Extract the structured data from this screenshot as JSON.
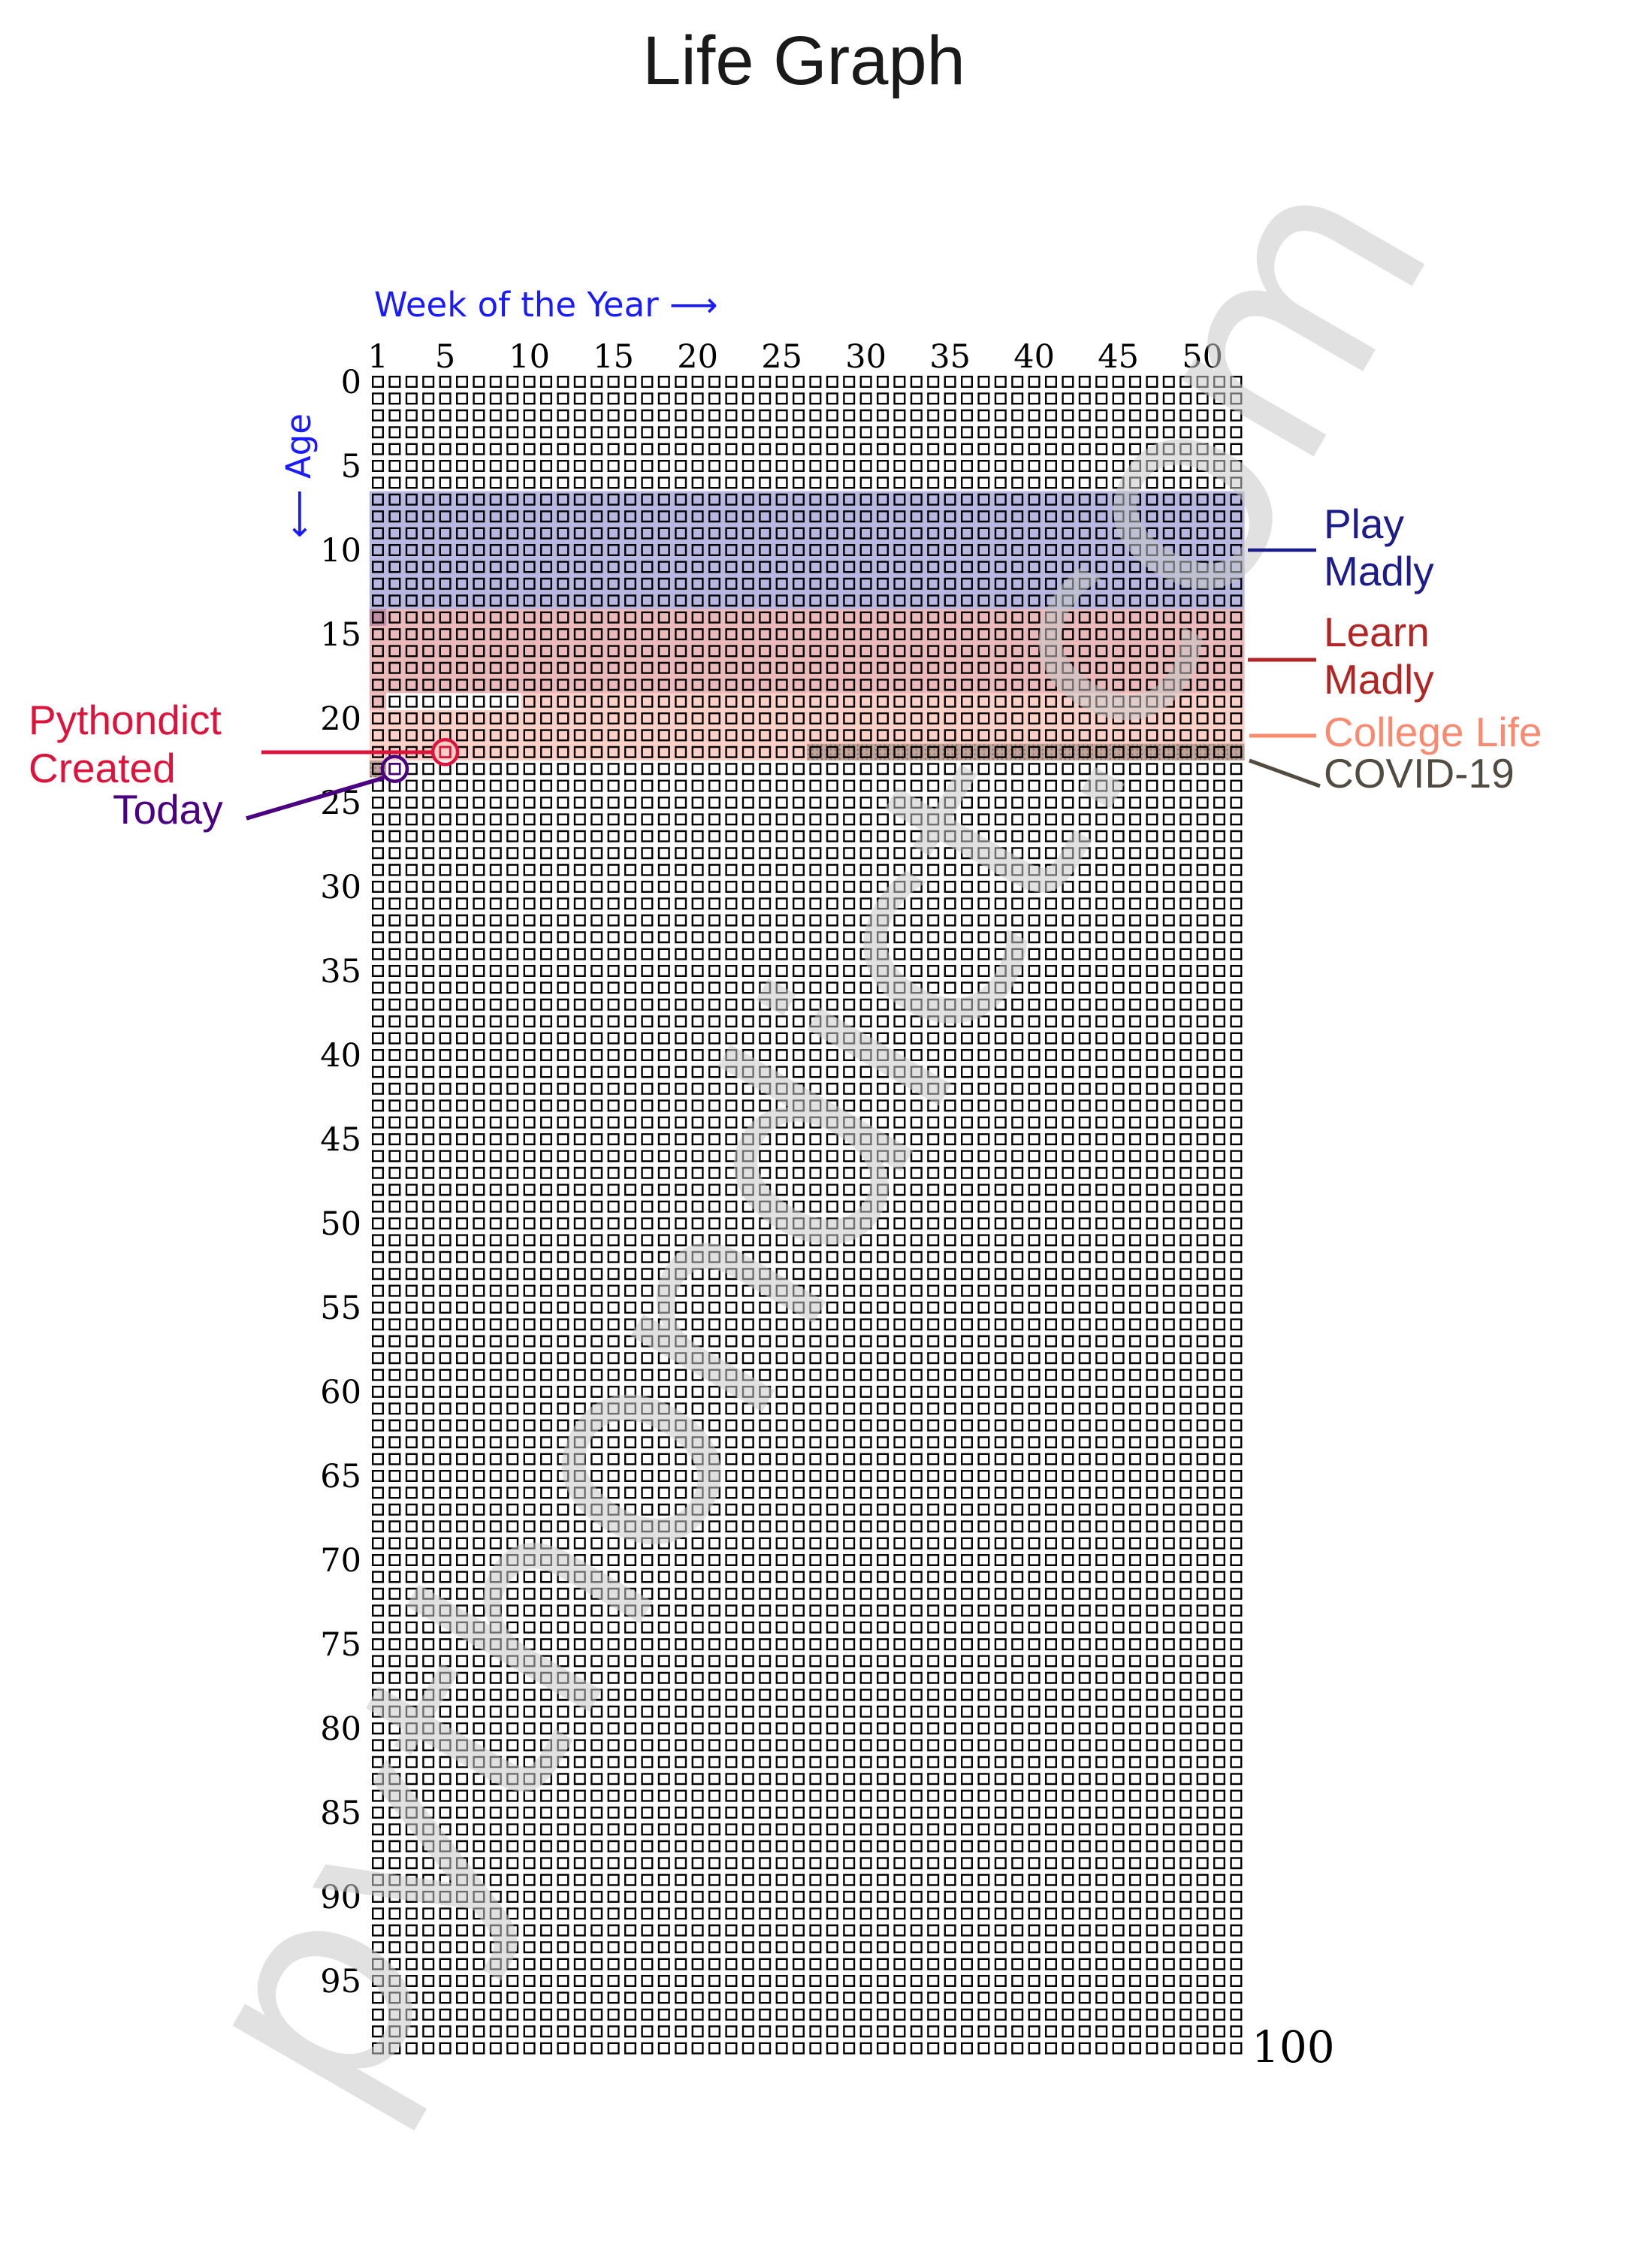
{
  "title": "Life Graph",
  "watermark": "pythondict.com",
  "x_axis": {
    "label": "Week of the Year ⟶",
    "ticks": [
      1,
      5,
      10,
      15,
      20,
      25,
      30,
      35,
      40,
      45,
      50
    ],
    "color": "#1a1aff"
  },
  "y_axis": {
    "label": "⟵ Age",
    "ticks": [
      0,
      5,
      10,
      15,
      20,
      25,
      30,
      35,
      40,
      45,
      50,
      55,
      60,
      65,
      70,
      75,
      80,
      85,
      90,
      95
    ],
    "end_label": "100",
    "color": "#1a1aff"
  },
  "grid": {
    "years": 100,
    "weeks_per_year": 52,
    "cell_stroke": "#000000"
  },
  "regions": [
    {
      "name": "play-madly",
      "label_line1": "Play",
      "label_line2": "Madly",
      "text_color": "#1c1c8a",
      "fill": "rgba(95,95,190,0.45)",
      "start_year": 7,
      "start_week": 1,
      "end_year": 14,
      "end_week": 1,
      "hatch": false
    },
    {
      "name": "learn-madly",
      "label_line1": "Learn",
      "label_line2": "Madly",
      "text_color": "#b22525",
      "fill": "rgba(205,80,80,0.40)",
      "start_year": 14,
      "start_week": 1,
      "end_year": 19,
      "end_week": 1,
      "hatch": false
    },
    {
      "name": "college-life",
      "label_line1": "College Life",
      "label_line2": "",
      "text_color": "#f98a70",
      "fill": "rgba(250,138,115,0.40)",
      "start_year": 19,
      "start_week": 10,
      "end_year": 23,
      "end_week": 1,
      "hatch": false
    },
    {
      "name": "covid-19",
      "label_line1": "COVID-19",
      "label_line2": "",
      "text_color": "#514b41",
      "fill": "rgba(110,100,88,0.42)",
      "start_year": 22,
      "start_week": 27,
      "end_year": 23,
      "end_week": 1,
      "hatch": true
    }
  ],
  "markers": [
    {
      "name": "pythondict-created",
      "label_line1": "Pythondict",
      "label_line2": "Created",
      "color": "#DC143C",
      "year": 22,
      "week": 5
    },
    {
      "name": "today",
      "label_line1": "Today",
      "label_line2": "",
      "color": "#4B0082",
      "year": 23,
      "week": 2
    }
  ],
  "chart_data": {
    "type": "heatmap",
    "title": "Life Graph",
    "xlabel": "Week of the Year",
    "ylabel": "Age",
    "x_range": [
      1,
      52
    ],
    "y_range": [
      0,
      100
    ],
    "x_ticks": [
      1,
      5,
      10,
      15,
      20,
      25,
      30,
      35,
      40,
      45,
      50
    ],
    "y_ticks": [
      0,
      5,
      10,
      15,
      20,
      25,
      30,
      35,
      40,
      45,
      50,
      55,
      60,
      65,
      70,
      75,
      80,
      85,
      90,
      95,
      100
    ],
    "grid": "52 weeks x 100 years of small outlined squares",
    "series": [
      {
        "name": "Play Madly",
        "from": {
          "age": 7,
          "week": 1
        },
        "to": {
          "age": 14,
          "week": 1
        },
        "color_hint": "light periwinkle band, navy label"
      },
      {
        "name": "Learn Madly",
        "from": {
          "age": 14,
          "week": 1
        },
        "to": {
          "age": 19,
          "week": 1
        },
        "color_hint": "light rose band, firebrick label"
      },
      {
        "name": "College Life",
        "from": {
          "age": 19,
          "week": 10
        },
        "to": {
          "age": 23,
          "week": 1
        },
        "color_hint": "light salmon band, salmon label"
      },
      {
        "name": "COVID-19",
        "from": {
          "age": 22,
          "week": 27
        },
        "to": {
          "age": 23,
          "week": 1
        },
        "color_hint": "gray dotted hatch band, dark gray label"
      },
      {
        "name": "Pythondict Created",
        "point": {
          "age": 22,
          "week": 5
        },
        "color_hint": "crimson circled square"
      },
      {
        "name": "Today",
        "point": {
          "age": 23,
          "week": 2
        },
        "color_hint": "indigo circled square"
      }
    ],
    "legend_position": "annotations left and right of grid",
    "watermark": "pythondict.com"
  }
}
